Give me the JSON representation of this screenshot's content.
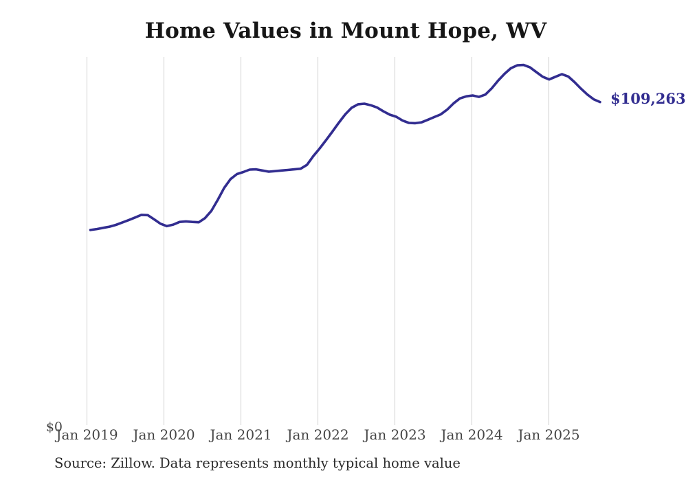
{
  "header": {
    "title": "Home Values in Mount Hope, WV"
  },
  "chart_data": {
    "type": "line",
    "title": "Home Values in Mount Hope, WV",
    "xlabel": "",
    "ylabel": "",
    "x_tick_labels": [
      "Jan 2019",
      "Jan 2020",
      "Jan 2021",
      "Jan 2022",
      "Jan 2023",
      "Jan 2024",
      "Jan 2025"
    ],
    "y_tick_labels": [
      "$0"
    ],
    "ylim": [
      0,
      124500
    ],
    "grid": "vertical-only",
    "legend": "none",
    "end_label": "$109,263",
    "start_month": "Jan 2019",
    "end_month": "Sep 2025",
    "frequency": "monthly",
    "series": [
      {
        "name": "Typical home value",
        "values": [
          66000,
          66300,
          66700,
          67100,
          67700,
          68500,
          69300,
          70200,
          71100,
          71000,
          69600,
          68100,
          67300,
          67800,
          68700,
          68900,
          68700,
          68600,
          70000,
          72500,
          76200,
          80200,
          83200,
          84900,
          85600,
          86400,
          86500,
          86100,
          85700,
          85900,
          86100,
          86300,
          86500,
          86700,
          88000,
          91000,
          93600,
          96400,
          99300,
          102300,
          105100,
          107300,
          108500,
          108700,
          108200,
          107400,
          106100,
          105000,
          104300,
          103000,
          102200,
          102100,
          102400,
          103300,
          104200,
          105100,
          106700,
          108800,
          110500,
          111200,
          111500,
          111000,
          111800,
          113900,
          116500,
          118800,
          120700,
          121700,
          121800,
          121000,
          119400,
          117800,
          116900,
          117800,
          118700,
          117900,
          116000,
          113800,
          111800,
          110200,
          109263
        ]
      }
    ]
  },
  "footer": {
    "source": "Source: Zillow. Data represents monthly typical home value"
  },
  "colors": {
    "line": "#322d90",
    "value_label": "#322d90",
    "grid": "#cfcfcf",
    "axis_text": "#444444",
    "title_text": "#161616",
    "source_text": "#2b2b2b",
    "background": "#ffffff"
  }
}
